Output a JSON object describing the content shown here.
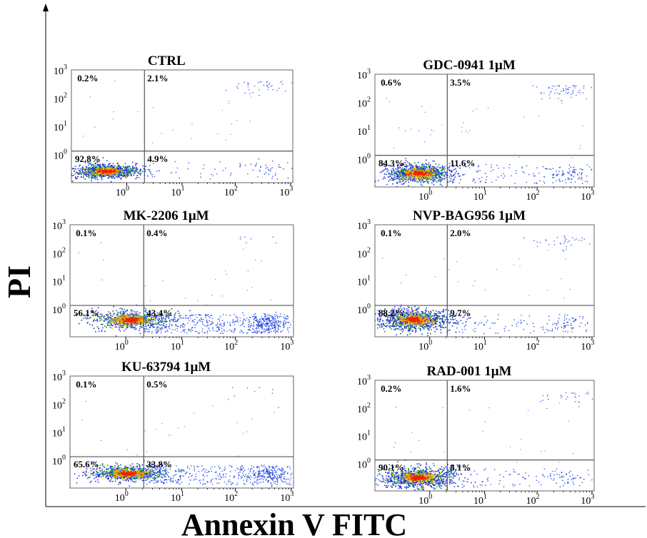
{
  "figure": {
    "ylabel": "PI",
    "xlabel": "Annexin V FITC"
  },
  "chart_data": [
    {
      "type": "scatter",
      "title": "CTRL",
      "xscale": "log",
      "yscale": "log",
      "x_ticks": [
        "10",
        "10",
        "10",
        "10"
      ],
      "x_tick_exps": [
        "0",
        "1",
        "2",
        "3"
      ],
      "y_ticks": [
        "10",
        "10",
        "10",
        "10"
      ],
      "y_tick_exps": [
        "0",
        "1",
        "2",
        "3"
      ],
      "quadrants": {
        "upper_left": "0.2%",
        "upper_right": "2.1%",
        "lower_left": "92.8%",
        "lower_right": "4.9%"
      },
      "gate": {
        "x": 1.8,
        "y": 1.3
      }
    },
    {
      "type": "scatter",
      "title": "GDC-0941 1μM",
      "xscale": "log",
      "yscale": "log",
      "x_ticks": [
        "10",
        "10",
        "10",
        "10"
      ],
      "x_tick_exps": [
        "0",
        "1",
        "2",
        "3"
      ],
      "y_ticks": [
        "10",
        "10",
        "10",
        "10"
      ],
      "y_tick_exps": [
        "0",
        "1",
        "2",
        "3"
      ],
      "quadrants": {
        "upper_left": "0.6%",
        "upper_right": "3.5%",
        "lower_left": "84.3%",
        "lower_right": "11.6%"
      },
      "gate": {
        "x": 2.0,
        "y": 1.3
      }
    },
    {
      "type": "scatter",
      "title": "MK-2206 1μM",
      "xscale": "log",
      "yscale": "log",
      "x_ticks": [
        "10",
        "10",
        "10",
        "10"
      ],
      "x_tick_exps": [
        "0",
        "1",
        "2",
        "3"
      ],
      "y_ticks": [
        "10",
        "10",
        "10",
        "10"
      ],
      "y_tick_exps": [
        "0",
        "1",
        "2",
        "3"
      ],
      "quadrants": {
        "upper_left": "0.1%",
        "upper_right": "0.4%",
        "lower_left": "56.1%",
        "lower_right": "43.4%"
      },
      "gate": {
        "x": 2.0,
        "y": 1.3
      }
    },
    {
      "type": "scatter",
      "title": "NVP-BAG956 1μM",
      "xscale": "log",
      "yscale": "log",
      "x_ticks": [
        "10",
        "10",
        "10",
        "10"
      ],
      "x_tick_exps": [
        "0",
        "1",
        "2",
        "3"
      ],
      "y_ticks": [
        "10",
        "10",
        "10",
        "10"
      ],
      "y_tick_exps": [
        "0",
        "1",
        "2",
        "3"
      ],
      "quadrants": {
        "upper_left": "0.1%",
        "upper_right": "2.0%",
        "lower_left": "88.2%",
        "lower_right": "9.7%"
      },
      "gate": {
        "x": 2.0,
        "y": 1.3
      }
    },
    {
      "type": "scatter",
      "title": "KU-63794 1μM",
      "xscale": "log",
      "yscale": "log",
      "x_ticks": [
        "10",
        "10",
        "10",
        "10"
      ],
      "x_tick_exps": [
        "0",
        "1",
        "2",
        "3"
      ],
      "y_ticks": [
        "10",
        "10",
        "10",
        "10"
      ],
      "y_tick_exps": [
        "0",
        "1",
        "2",
        "3"
      ],
      "quadrants": {
        "upper_left": "0.1%",
        "upper_right": "0.5%",
        "lower_left": "65.6%",
        "lower_right": "33.8%"
      },
      "gate": {
        "x": 2.0,
        "y": 1.3
      }
    },
    {
      "type": "scatter",
      "title": "RAD-001 1μM",
      "xscale": "log",
      "yscale": "log",
      "x_ticks": [
        "10",
        "10",
        "10",
        "10"
      ],
      "x_tick_exps": [
        "0",
        "1",
        "2",
        "3"
      ],
      "y_ticks": [
        "10",
        "10",
        "10",
        "10"
      ],
      "y_tick_exps": [
        "0",
        "1",
        "2",
        "3"
      ],
      "quadrants": {
        "upper_left": "0.2%",
        "upper_right": "1.6%",
        "lower_left": "90.1%",
        "lower_right": "8.1%"
      },
      "gate": {
        "x": 2.0,
        "y": 1.3
      }
    }
  ]
}
